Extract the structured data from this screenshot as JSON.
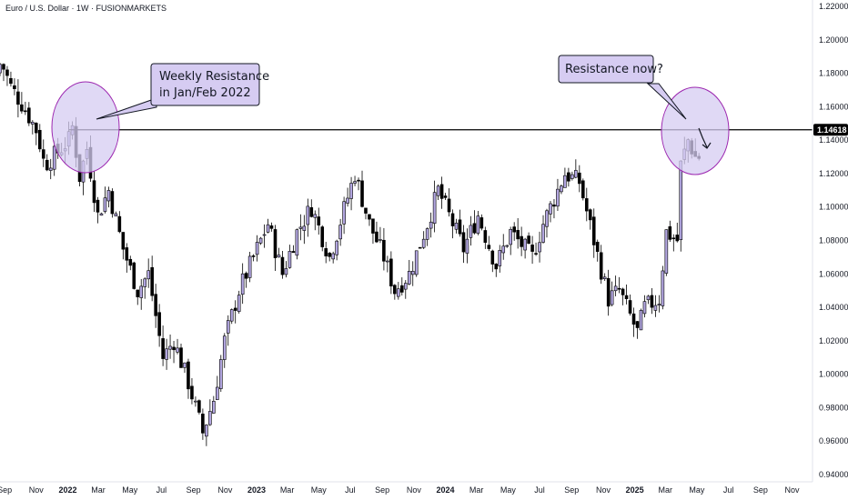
{
  "title": "Euro / U.S. Dollar · 1W · FUSIONMARKETS",
  "chart_data": {
    "type": "candlestick",
    "title": "Euro / U.S. Dollar · 1W · FUSIONMARKETS",
    "ylim": [
      0.94,
      1.22
    ],
    "x_range": [
      "2021-08-23",
      "2025-11-30"
    ],
    "resistance_level": 1.14618,
    "resistance_label": "1.14618",
    "yticks": [
      "1.22000",
      "1.20000",
      "1.18000",
      "1.16000",
      "1.14000",
      "1.12000",
      "1.10000",
      "1.08000",
      "1.06000",
      "1.04000",
      "1.02000",
      "1.00000",
      "0.98000",
      "0.96000",
      "0.94000"
    ],
    "xticks": [
      {
        "label": "Sep",
        "date": "2021-09-01",
        "bold": false
      },
      {
        "label": "Nov",
        "date": "2021-11-01",
        "bold": false
      },
      {
        "label": "2022",
        "date": "2022-01-01",
        "bold": true
      },
      {
        "label": "Mar",
        "date": "2022-03-01",
        "bold": false
      },
      {
        "label": "May",
        "date": "2022-05-01",
        "bold": false
      },
      {
        "label": "Jul",
        "date": "2022-07-01",
        "bold": false
      },
      {
        "label": "Sep",
        "date": "2022-09-01",
        "bold": false
      },
      {
        "label": "Nov",
        "date": "2022-11-01",
        "bold": false
      },
      {
        "label": "2023",
        "date": "2023-01-01",
        "bold": true
      },
      {
        "label": "Mar",
        "date": "2023-03-01",
        "bold": false
      },
      {
        "label": "May",
        "date": "2023-05-01",
        "bold": false
      },
      {
        "label": "Jul",
        "date": "2023-07-01",
        "bold": false
      },
      {
        "label": "Sep",
        "date": "2023-09-01",
        "bold": false
      },
      {
        "label": "Nov",
        "date": "2023-11-01",
        "bold": false
      },
      {
        "label": "2024",
        "date": "2024-01-01",
        "bold": true
      },
      {
        "label": "Mar",
        "date": "2024-03-01",
        "bold": false
      },
      {
        "label": "May",
        "date": "2024-05-01",
        "bold": false
      },
      {
        "label": "Jul",
        "date": "2024-07-01",
        "bold": false
      },
      {
        "label": "Sep",
        "date": "2024-09-01",
        "bold": false
      },
      {
        "label": "Nov",
        "date": "2024-11-01",
        "bold": false
      },
      {
        "label": "2025",
        "date": "2025-01-01",
        "bold": true
      },
      {
        "label": "Mar",
        "date": "2025-03-01",
        "bold": false
      },
      {
        "label": "May",
        "date": "2025-05-01",
        "bold": false
      },
      {
        "label": "Jul",
        "date": "2025-07-01",
        "bold": false
      },
      {
        "label": "Sep",
        "date": "2025-09-01",
        "bold": false
      },
      {
        "label": "Nov",
        "date": "2025-11-01",
        "bold": false
      }
    ],
    "price_path": [
      {
        "date": "2021-08-23",
        "close": 1.18
      },
      {
        "date": "2021-09-01",
        "close": 1.187
      },
      {
        "date": "2021-09-20",
        "close": 1.172
      },
      {
        "date": "2021-10-15",
        "close": 1.16
      },
      {
        "date": "2021-11-10",
        "close": 1.145
      },
      {
        "date": "2021-11-24",
        "close": 1.125
      },
      {
        "date": "2021-12-20",
        "close": 1.133
      },
      {
        "date": "2022-01-10",
        "close": 1.14
      },
      {
        "date": "2022-01-17",
        "close": 1.148
      },
      {
        "date": "2022-01-31",
        "close": 1.118
      },
      {
        "date": "2022-02-14",
        "close": 1.135
      },
      {
        "date": "2022-03-07",
        "close": 1.095
      },
      {
        "date": "2022-03-28",
        "close": 1.11
      },
      {
        "date": "2022-04-25",
        "close": 1.075
      },
      {
        "date": "2022-05-23",
        "close": 1.05
      },
      {
        "date": "2022-06-13",
        "close": 1.06
      },
      {
        "date": "2022-07-11",
        "close": 1.01
      },
      {
        "date": "2022-08-01",
        "close": 1.02
      },
      {
        "date": "2022-08-29",
        "close": 0.995
      },
      {
        "date": "2022-09-26",
        "close": 0.965
      },
      {
        "date": "2022-10-17",
        "close": 0.985
      },
      {
        "date": "2022-11-07",
        "close": 1.02
      },
      {
        "date": "2022-12-05",
        "close": 1.05
      },
      {
        "date": "2023-01-02",
        "close": 1.07
      },
      {
        "date": "2023-01-30",
        "close": 1.09
      },
      {
        "date": "2023-02-27",
        "close": 1.06
      },
      {
        "date": "2023-03-27",
        "close": 1.085
      },
      {
        "date": "2023-04-24",
        "close": 1.1
      },
      {
        "date": "2023-05-29",
        "close": 1.07
      },
      {
        "date": "2023-07-17",
        "close": 1.12
      },
      {
        "date": "2023-08-14",
        "close": 1.09
      },
      {
        "date": "2023-09-11",
        "close": 1.07
      },
      {
        "date": "2023-10-02",
        "close": 1.05
      },
      {
        "date": "2023-10-30",
        "close": 1.06
      },
      {
        "date": "2023-12-04",
        "close": 1.09
      },
      {
        "date": "2023-12-25",
        "close": 1.11
      },
      {
        "date": "2024-02-12",
        "close": 1.075
      },
      {
        "date": "2024-03-11",
        "close": 1.095
      },
      {
        "date": "2024-04-15",
        "close": 1.065
      },
      {
        "date": "2024-05-13",
        "close": 1.085
      },
      {
        "date": "2024-06-24",
        "close": 1.07
      },
      {
        "date": "2024-07-15",
        "close": 1.09
      },
      {
        "date": "2024-08-26",
        "close": 1.12
      },
      {
        "date": "2024-09-23",
        "close": 1.115
      },
      {
        "date": "2024-10-21",
        "close": 1.08
      },
      {
        "date": "2024-11-18",
        "close": 1.045
      },
      {
        "date": "2024-12-09",
        "close": 1.05
      },
      {
        "date": "2025-01-13",
        "close": 1.025
      },
      {
        "date": "2025-01-27",
        "close": 1.04
      },
      {
        "date": "2025-02-24",
        "close": 1.045
      },
      {
        "date": "2025-03-10",
        "close": 1.085
      },
      {
        "date": "2025-03-31",
        "close": 1.08
      },
      {
        "date": "2025-04-07",
        "close": 1.125
      },
      {
        "date": "2025-04-21",
        "close": 1.14
      },
      {
        "date": "2025-05-05",
        "close": 1.13
      }
    ],
    "annotations": [
      {
        "text_lines": [
          "Weekly Resistance",
          "in Jan/Feb 2022"
        ]
      },
      {
        "text_lines": [
          "Resistance now?"
        ]
      }
    ],
    "colors": {
      "bull": "#b2a6e0",
      "bear": "#000000",
      "highlight_fill": "#d6ccf2",
      "highlight_stroke": "#9c27b0",
      "line": "#000000",
      "tag_bg": "#000000"
    }
  }
}
